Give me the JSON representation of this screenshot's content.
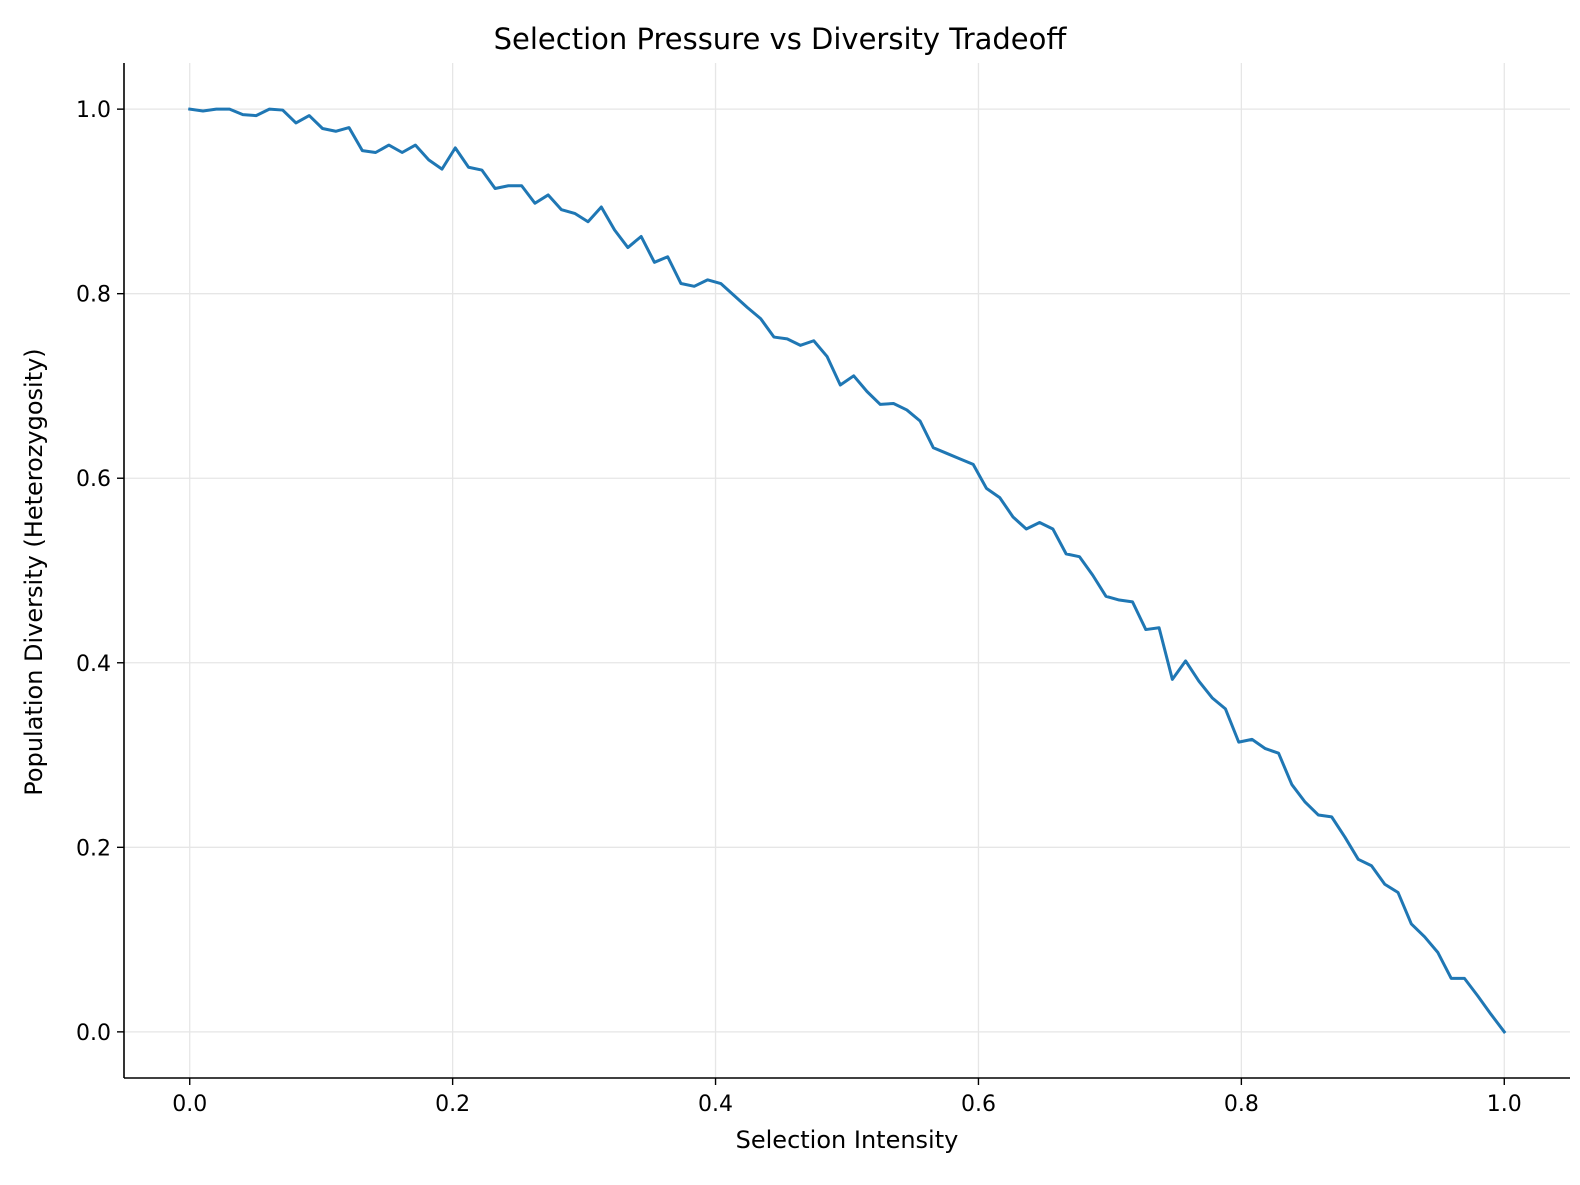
{
  "chart_data": {
    "type": "line",
    "title": "Selection Pressure vs Diversity Tradeoff",
    "xlabel": "Selection Intensity",
    "ylabel": "Population Diversity (Heterozygosity)",
    "xlim": [
      -0.05,
      1.05
    ],
    "ylim": [
      -0.05,
      1.05
    ],
    "xticks": [
      0.0,
      0.2,
      0.4,
      0.6,
      0.8,
      1.0
    ],
    "xtick_labels": [
      "0.0",
      "0.2",
      "0.4",
      "0.6",
      "0.8",
      "1.0"
    ],
    "yticks": [
      0.0,
      0.2,
      0.4,
      0.6,
      0.8,
      1.0
    ],
    "ytick_labels": [
      "0.0",
      "0.2",
      "0.4",
      "0.6",
      "0.8",
      "1.0"
    ],
    "grid": true,
    "series": [
      {
        "color": "#1f77b4",
        "x": [
          0.0,
          0.0101,
          0.0202,
          0.0303,
          0.0404,
          0.0505,
          0.0606,
          0.0707,
          0.0808,
          0.0909,
          0.101,
          0.1111,
          0.1212,
          0.1313,
          0.1414,
          0.1515,
          0.1616,
          0.1717,
          0.1818,
          0.1919,
          0.202,
          0.2121,
          0.2222,
          0.2323,
          0.2424,
          0.2525,
          0.2626,
          0.2727,
          0.2828,
          0.2929,
          0.303,
          0.3131,
          0.3232,
          0.3333,
          0.3434,
          0.3535,
          0.3636,
          0.3737,
          0.3838,
          0.3939,
          0.404,
          0.4141,
          0.4242,
          0.4343,
          0.4444,
          0.4545,
          0.4646,
          0.4747,
          0.4848,
          0.4949,
          0.5051,
          0.5152,
          0.5253,
          0.5354,
          0.5455,
          0.5556,
          0.5657,
          0.5758,
          0.5859,
          0.596,
          0.6061,
          0.6162,
          0.6263,
          0.6364,
          0.6465,
          0.6566,
          0.6667,
          0.6768,
          0.6869,
          0.697,
          0.7071,
          0.7172,
          0.7273,
          0.7374,
          0.7475,
          0.7576,
          0.7677,
          0.7778,
          0.7879,
          0.798,
          0.8081,
          0.8182,
          0.8283,
          0.8384,
          0.8485,
          0.8586,
          0.8687,
          0.8788,
          0.8889,
          0.899,
          0.9091,
          0.9192,
          0.9293,
          0.9394,
          0.9495,
          0.9596,
          0.9697,
          0.9798,
          0.9899,
          1.0
        ],
        "y": [
          1.0,
          0.998,
          1.0,
          1.0,
          0.994,
          0.993,
          1.0,
          0.999,
          0.985,
          0.993,
          0.979,
          0.976,
          0.98,
          0.955,
          0.953,
          0.961,
          0.953,
          0.961,
          0.945,
          0.935,
          0.958,
          0.937,
          0.934,
          0.914,
          0.917,
          0.917,
          0.898,
          0.907,
          0.891,
          0.887,
          0.878,
          0.894,
          0.869,
          0.85,
          0.862,
          0.834,
          0.84,
          0.811,
          0.808,
          0.815,
          0.811,
          0.798,
          0.785,
          0.773,
          0.753,
          0.751,
          0.744,
          0.749,
          0.732,
          0.701,
          0.711,
          0.694,
          0.68,
          0.681,
          0.674,
          0.662,
          0.633,
          0.627,
          0.621,
          0.615,
          0.589,
          0.579,
          0.558,
          0.545,
          0.552,
          0.545,
          0.518,
          0.515,
          0.495,
          0.472,
          0.468,
          0.466,
          0.436,
          0.438,
          0.382,
          0.402,
          0.38,
          0.362,
          0.35,
          0.314,
          0.317,
          0.307,
          0.302,
          0.268,
          0.249,
          0.235,
          0.233,
          0.211,
          0.187,
          0.18,
          0.16,
          0.151,
          0.117,
          0.103,
          0.086,
          0.058,
          0.058,
          0.039,
          0.019,
          0.0
        ]
      }
    ]
  }
}
